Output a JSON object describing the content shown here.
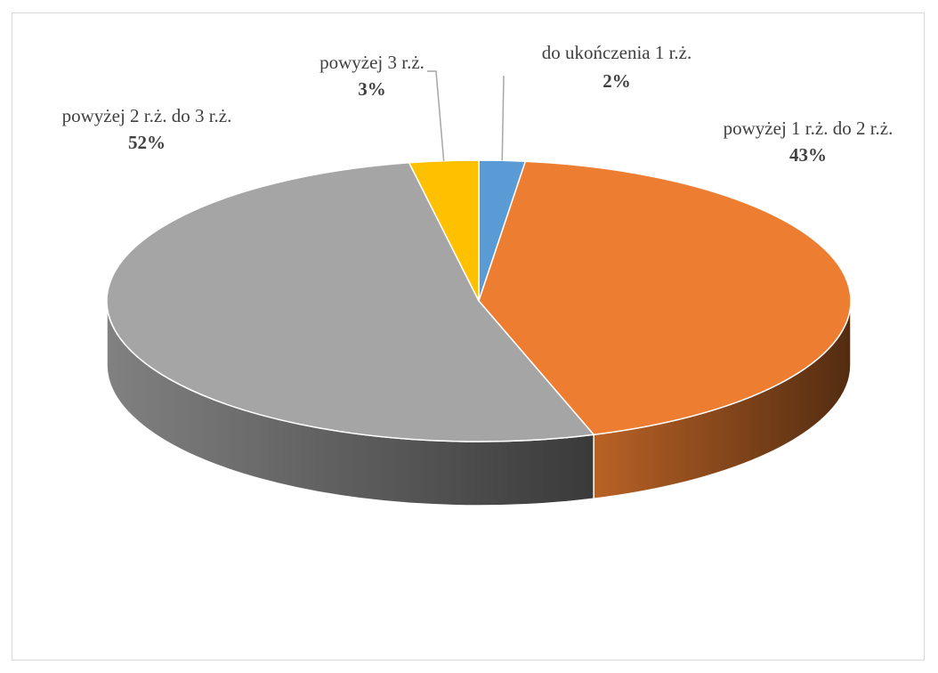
{
  "chart_data": {
    "type": "pie",
    "title": "",
    "categories": [
      "do ukończenia 1 r.ż.",
      "powyżej 1 r.ż. do 2 r.ż.",
      "powyżej 2 r.ż. do 3 r.ż.",
      "powyżej 3 r.ż."
    ],
    "values": [
      2,
      43,
      52,
      3
    ],
    "value_labels": [
      "2%",
      "43%",
      "52%",
      "3%"
    ],
    "colors": [
      "#5b9bd5",
      "#ed7d31",
      "#a5a5a5",
      "#ffc000"
    ],
    "three_d": true,
    "legend": "none"
  }
}
